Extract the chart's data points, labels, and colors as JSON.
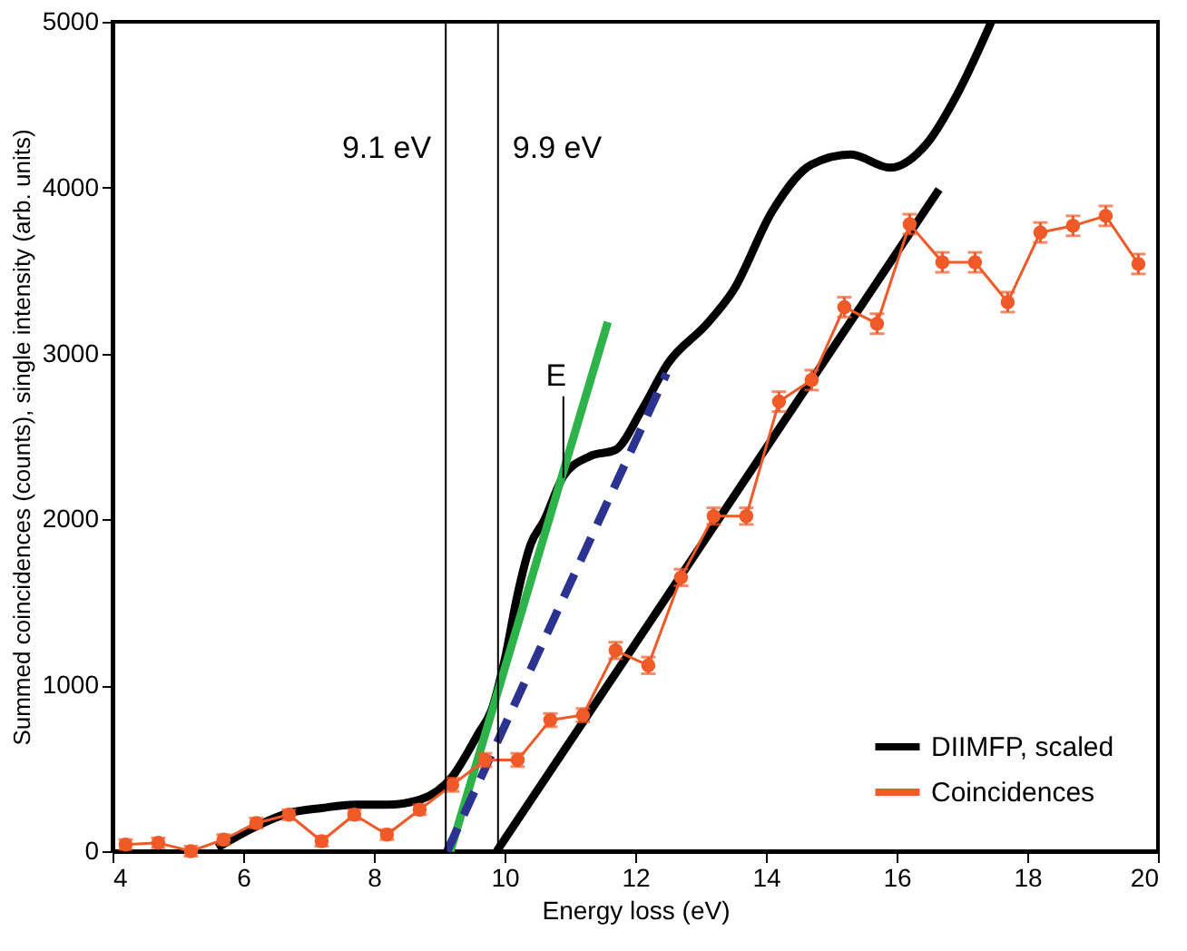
{
  "chart_data": {
    "type": "line",
    "xlabel": "Energy loss (eV)",
    "ylabel": "Summed coincidences (counts), single intensity (arb. units)",
    "xlim": [
      4,
      20
    ],
    "xticks": [
      4,
      6,
      8,
      10,
      12,
      14,
      16,
      18,
      20
    ],
    "ylim": [
      0,
      5000
    ],
    "yticks": [
      0,
      1000,
      2000,
      3000,
      4000,
      5000
    ],
    "grid": false,
    "legend": "bottom right",
    "ref_lines": [
      {
        "axis": "x",
        "value": 9.1,
        "label": "9.1 eV",
        "color": "#000000"
      },
      {
        "axis": "x",
        "value": 9.9,
        "label": "9.9 eV",
        "color": "#000000"
      }
    ],
    "annotations": [
      {
        "text": "E",
        "x": 10.9,
        "y": 2250
      }
    ],
    "series": [
      {
        "name": "DIIMFP, scaled",
        "color": "#000000",
        "marker": "none",
        "line_style": "solid",
        "x": [
          5.6,
          6.2,
          6.7,
          7.2,
          7.7,
          8.2,
          8.7,
          9.2,
          9.6,
          9.8,
          10.0,
          10.2,
          10.4,
          10.6,
          10.9,
          11.3,
          11.7,
          12.1,
          12.5,
          13.1,
          13.5,
          14.1,
          14.7,
          15.3,
          15.9,
          16.45,
          16.95,
          17.45
        ],
        "values": [
          20,
          150,
          230,
          260,
          280,
          280,
          310,
          450,
          710,
          850,
          1150,
          1550,
          1850,
          1990,
          2260,
          2380,
          2420,
          2660,
          2940,
          3180,
          3380,
          3860,
          4140,
          4200,
          4120,
          4260,
          4580,
          5000
        ]
      },
      {
        "name": "Coincidences",
        "color": "#f05a28",
        "marker": "circle",
        "line_style": "solid",
        "x": [
          4.2,
          4.7,
          5.2,
          5.7,
          6.2,
          6.7,
          7.2,
          7.7,
          8.2,
          8.7,
          9.2,
          9.7,
          10.2,
          10.7,
          11.2,
          11.7,
          12.2,
          12.7,
          13.2,
          13.7,
          14.2,
          14.7,
          15.2,
          15.7,
          16.2,
          16.7,
          17.2,
          17.7,
          18.2,
          18.7,
          19.2,
          19.7
        ],
        "values": [
          40,
          50,
          0,
          70,
          170,
          220,
          60,
          220,
          100,
          250,
          400,
          550,
          550,
          790,
          820,
          1210,
          1120,
          1650,
          2020,
          2020,
          2710,
          2840,
          3280,
          3180,
          3780,
          3550,
          3550,
          3310,
          3730,
          3770,
          3830,
          3540
        ],
        "errors": [
          30,
          30,
          30,
          30,
          30,
          30,
          30,
          30,
          30,
          30,
          40,
          40,
          40,
          40,
          40,
          50,
          50,
          50,
          50,
          50,
          60,
          60,
          60,
          60,
          60,
          60,
          60,
          60,
          60,
          60,
          60,
          60
        ]
      },
      {
        "color": "#2db34a",
        "marker": "none",
        "line_style": "solid",
        "x": [
          9.17,
          11.58
        ],
        "values": [
          0,
          3190
        ]
      },
      {
        "color": "#2b3290",
        "marker": "none",
        "line_style": "dashed",
        "x": [
          9.12,
          12.48
        ],
        "values": [
          0,
          2880
        ]
      },
      {
        "color": "#000000",
        "marker": "none",
        "line_style": "solid",
        "x": [
          9.88,
          16.65
        ],
        "values": [
          0,
          3990
        ]
      }
    ]
  }
}
